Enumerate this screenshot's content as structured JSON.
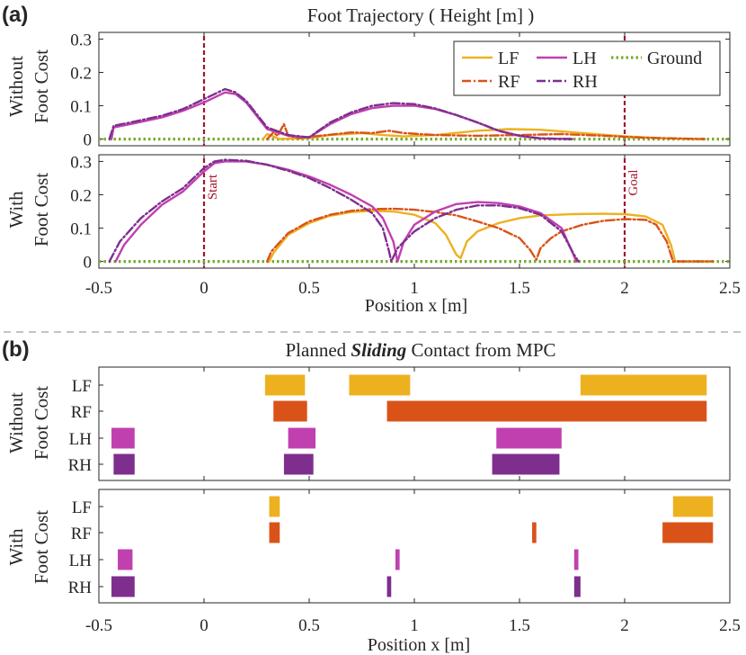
{
  "figure": {
    "panel_a_label": "(a)",
    "panel_b_label": "(b)",
    "title_a": "Foot Trajectory ( Height [m] )",
    "title_b_pre": "Planned ",
    "title_b_em": "Sliding",
    "title_b_post": " Contact from MPC",
    "row_without_1": "Without",
    "row_without_2": "Foot Cost",
    "row_with_1": "With",
    "row_with_2": "Foot Cost",
    "xlabel": "Position x [m]",
    "start_label": "Start",
    "goal_label": "Goal"
  },
  "colors": {
    "LF": "#EDB120",
    "RF": "#D95319",
    "LH": "#C040B0",
    "RH": "#7E2F8E",
    "Ground": "#77AC30",
    "marker": "#A2142F",
    "axis": "#262626",
    "divider": "#888888"
  },
  "chart_data": [
    {
      "id": "traj_without",
      "type": "line",
      "title": "Foot Trajectory ( Height [m] )",
      "ylabel": "Without Foot Cost",
      "xlim": [
        -0.5,
        2.5
      ],
      "ylim": [
        -0.02,
        0.32
      ],
      "yticks": [
        0,
        0.1,
        0.2,
        0.3
      ],
      "ytick_labels": [
        "0",
        "0.1",
        "0.2",
        "0.3"
      ],
      "legend": [
        "LF",
        "RF",
        "LH",
        "RH",
        "Ground"
      ],
      "markers": [
        0,
        2
      ],
      "series": [
        {
          "name": "LF",
          "style": "solid",
          "points": [
            [
              0.28,
              0
            ],
            [
              0.3,
              0.015
            ],
            [
              0.33,
              0.008
            ],
            [
              0.36,
              0
            ],
            [
              0.5,
              0.003
            ],
            [
              0.6,
              0.012
            ],
            [
              0.75,
              0.018
            ],
            [
              0.85,
              0.012
            ],
            [
              0.95,
              0.008
            ],
            [
              1.1,
              0.012
            ],
            [
              1.3,
              0.025
            ],
            [
              1.45,
              0.03
            ],
            [
              1.6,
              0.028
            ],
            [
              1.8,
              0.018
            ],
            [
              2.0,
              0.008
            ],
            [
              2.2,
              0.002
            ],
            [
              2.38,
              0
            ]
          ]
        },
        {
          "name": "RF",
          "style": "dashdot",
          "points": [
            [
              0.3,
              0
            ],
            [
              0.33,
              0.02
            ],
            [
              0.35,
              0.01
            ],
            [
              0.38,
              0.045
            ],
            [
              0.4,
              0.01
            ],
            [
              0.45,
              0.003
            ],
            [
              0.55,
              0.01
            ],
            [
              0.7,
              0.02
            ],
            [
              0.8,
              0.018
            ],
            [
              0.88,
              0.025
            ],
            [
              0.95,
              0.018
            ],
            [
              1.1,
              0.012
            ],
            [
              1.3,
              0.01
            ],
            [
              1.5,
              0.012
            ],
            [
              1.7,
              0.015
            ],
            [
              1.9,
              0.01
            ],
            [
              2.1,
              0.004
            ],
            [
              2.38,
              0
            ]
          ]
        },
        {
          "name": "LH",
          "style": "solid",
          "points": [
            [
              -0.44,
              0
            ],
            [
              -0.43,
              0.035
            ],
            [
              -0.35,
              0.045
            ],
            [
              -0.2,
              0.065
            ],
            [
              -0.1,
              0.085
            ],
            [
              0,
              0.11
            ],
            [
              0.05,
              0.125
            ],
            [
              0.1,
              0.14
            ],
            [
              0.15,
              0.135
            ],
            [
              0.2,
              0.11
            ],
            [
              0.25,
              0.07
            ],
            [
              0.3,
              0.03
            ],
            [
              0.4,
              0.01
            ],
            [
              0.5,
              0.005
            ],
            [
              0.6,
              0.045
            ],
            [
              0.7,
              0.075
            ],
            [
              0.8,
              0.093
            ],
            [
              0.9,
              0.1
            ],
            [
              1.0,
              0.1
            ],
            [
              1.1,
              0.09
            ],
            [
              1.2,
              0.072
            ],
            [
              1.3,
              0.05
            ],
            [
              1.4,
              0.025
            ],
            [
              1.5,
              0.01
            ],
            [
              1.6,
              0.002
            ],
            [
              1.75,
              0
            ]
          ]
        },
        {
          "name": "RH",
          "style": "dashdot",
          "points": [
            [
              -0.45,
              0
            ],
            [
              -0.43,
              0.04
            ],
            [
              -0.35,
              0.05
            ],
            [
              -0.2,
              0.07
            ],
            [
              -0.1,
              0.09
            ],
            [
              0,
              0.12
            ],
            [
              0.05,
              0.135
            ],
            [
              0.1,
              0.15
            ],
            [
              0.15,
              0.14
            ],
            [
              0.2,
              0.115
            ],
            [
              0.25,
              0.075
            ],
            [
              0.3,
              0.035
            ],
            [
              0.4,
              0.012
            ],
            [
              0.5,
              0.005
            ],
            [
              0.6,
              0.05
            ],
            [
              0.7,
              0.08
            ],
            [
              0.8,
              0.1
            ],
            [
              0.9,
              0.108
            ],
            [
              1.0,
              0.105
            ],
            [
              1.1,
              0.092
            ],
            [
              1.2,
              0.072
            ],
            [
              1.3,
              0.05
            ],
            [
              1.4,
              0.025
            ],
            [
              1.5,
              0.01
            ],
            [
              1.6,
              0.002
            ],
            [
              1.75,
              0
            ]
          ]
        },
        {
          "name": "Ground",
          "style": "dotted",
          "points": [
            [
              -0.5,
              0
            ],
            [
              2.5,
              0
            ]
          ]
        }
      ]
    },
    {
      "id": "traj_with",
      "type": "line",
      "ylabel": "With Foot Cost",
      "xlabel": "Position x [m]",
      "xlim": [
        -0.5,
        2.5
      ],
      "ylim": [
        -0.02,
        0.32
      ],
      "xticks": [
        -0.5,
        0,
        0.5,
        1,
        1.5,
        2,
        2.5
      ],
      "xtick_labels": [
        "-0.5",
        "0",
        "0.5",
        "1",
        "1.5",
        "2",
        "2.5"
      ],
      "yticks": [
        0,
        0.1,
        0.2,
        0.3
      ],
      "ytick_labels": [
        "0",
        "0.1",
        "0.2",
        "0.3"
      ],
      "markers": [
        0,
        2
      ],
      "series": [
        {
          "name": "LF",
          "style": "solid",
          "points": [
            [
              0.31,
              0
            ],
            [
              0.33,
              0.025
            ],
            [
              0.4,
              0.08
            ],
            [
              0.5,
              0.115
            ],
            [
              0.6,
              0.137
            ],
            [
              0.7,
              0.148
            ],
            [
              0.8,
              0.152
            ],
            [
              0.9,
              0.15
            ],
            [
              1.0,
              0.14
            ],
            [
              1.1,
              0.115
            ],
            [
              1.15,
              0.08
            ],
            [
              1.2,
              0.02
            ],
            [
              1.22,
              0.01
            ],
            [
              1.25,
              0.06
            ],
            [
              1.3,
              0.09
            ],
            [
              1.4,
              0.115
            ],
            [
              1.5,
              0.13
            ],
            [
              1.6,
              0.138
            ],
            [
              1.75,
              0.142
            ],
            [
              1.9,
              0.143
            ],
            [
              2.0,
              0.142
            ],
            [
              2.1,
              0.135
            ],
            [
              2.18,
              0.11
            ],
            [
              2.22,
              0.05
            ],
            [
              2.24,
              0
            ],
            [
              2.42,
              0
            ]
          ]
        },
        {
          "name": "RF",
          "style": "dashdot",
          "points": [
            [
              0.3,
              0
            ],
            [
              0.32,
              0.03
            ],
            [
              0.4,
              0.085
            ],
            [
              0.5,
              0.12
            ],
            [
              0.6,
              0.14
            ],
            [
              0.7,
              0.152
            ],
            [
              0.8,
              0.157
            ],
            [
              0.9,
              0.158
            ],
            [
              1.0,
              0.155
            ],
            [
              1.1,
              0.148
            ],
            [
              1.2,
              0.138
            ],
            [
              1.3,
              0.12
            ],
            [
              1.4,
              0.1
            ],
            [
              1.5,
              0.07
            ],
            [
              1.55,
              0.035
            ],
            [
              1.58,
              0.005
            ],
            [
              1.6,
              0.04
            ],
            [
              1.65,
              0.07
            ],
            [
              1.7,
              0.09
            ],
            [
              1.8,
              0.11
            ],
            [
              1.9,
              0.122
            ],
            [
              2.0,
              0.127
            ],
            [
              2.1,
              0.125
            ],
            [
              2.15,
              0.11
            ],
            [
              2.2,
              0.06
            ],
            [
              2.23,
              0
            ],
            [
              2.42,
              0
            ]
          ]
        },
        {
          "name": "LH",
          "style": "solid",
          "points": [
            [
              -0.42,
              0
            ],
            [
              -0.38,
              0.05
            ],
            [
              -0.3,
              0.11
            ],
            [
              -0.2,
              0.17
            ],
            [
              -0.1,
              0.21
            ],
            [
              0,
              0.27
            ],
            [
              0.05,
              0.295
            ],
            [
              0.1,
              0.3
            ],
            [
              0.2,
              0.3
            ],
            [
              0.3,
              0.29
            ],
            [
              0.4,
              0.275
            ],
            [
              0.5,
              0.255
            ],
            [
              0.6,
              0.23
            ],
            [
              0.7,
              0.2
            ],
            [
              0.8,
              0.165
            ],
            [
              0.85,
              0.13
            ],
            [
              0.9,
              0.06
            ],
            [
              0.92,
              0
            ],
            [
              0.95,
              0.06
            ],
            [
              1.0,
              0.11
            ],
            [
              1.1,
              0.15
            ],
            [
              1.2,
              0.172
            ],
            [
              1.3,
              0.178
            ],
            [
              1.4,
              0.175
            ],
            [
              1.5,
              0.165
            ],
            [
              1.6,
              0.145
            ],
            [
              1.7,
              0.1
            ],
            [
              1.75,
              0.03
            ],
            [
              1.77,
              0
            ]
          ]
        },
        {
          "name": "RH",
          "style": "dashdot",
          "points": [
            [
              -0.45,
              0
            ],
            [
              -0.4,
              0.06
            ],
            [
              -0.3,
              0.13
            ],
            [
              -0.2,
              0.18
            ],
            [
              -0.1,
              0.22
            ],
            [
              0,
              0.28
            ],
            [
              0.05,
              0.3
            ],
            [
              0.1,
              0.305
            ],
            [
              0.2,
              0.302
            ],
            [
              0.3,
              0.29
            ],
            [
              0.4,
              0.272
            ],
            [
              0.5,
              0.25
            ],
            [
              0.6,
              0.22
            ],
            [
              0.7,
              0.185
            ],
            [
              0.8,
              0.145
            ],
            [
              0.85,
              0.1
            ],
            [
              0.88,
              0.03
            ],
            [
              0.89,
              0
            ],
            [
              0.92,
              0.04
            ],
            [
              1.0,
              0.09
            ],
            [
              1.1,
              0.13
            ],
            [
              1.2,
              0.155
            ],
            [
              1.3,
              0.168
            ],
            [
              1.4,
              0.168
            ],
            [
              1.5,
              0.16
            ],
            [
              1.6,
              0.14
            ],
            [
              1.7,
              0.09
            ],
            [
              1.76,
              0.02
            ],
            [
              1.78,
              0
            ]
          ]
        },
        {
          "name": "Ground",
          "style": "dotted",
          "points": [
            [
              -0.5,
              0
            ],
            [
              2.5,
              0
            ]
          ]
        }
      ]
    },
    {
      "id": "contact_without",
      "type": "bar",
      "title": "Planned Sliding Contact from MPC",
      "ylabel": "Without Foot Cost",
      "xlim": [
        -0.5,
        2.5
      ],
      "categories": [
        "LF",
        "RF",
        "LH",
        "RH"
      ],
      "intervals": {
        "LF": [
          [
            0.29,
            0.48
          ],
          [
            0.69,
            0.98
          ],
          [
            1.79,
            2.39
          ]
        ],
        "RF": [
          [
            0.33,
            0.49
          ],
          [
            0.87,
            2.39
          ]
        ],
        "LH": [
          [
            -0.44,
            -0.33
          ],
          [
            0.4,
            0.53
          ],
          [
            1.39,
            1.7
          ]
        ],
        "RH": [
          [
            -0.43,
            -0.33
          ],
          [
            0.38,
            0.52
          ],
          [
            1.37,
            1.69
          ]
        ]
      }
    },
    {
      "id": "contact_with",
      "type": "bar",
      "ylabel": "With Foot Cost",
      "xlabel": "Position x [m]",
      "xlim": [
        -0.5,
        2.5
      ],
      "xticks": [
        -0.5,
        0,
        0.5,
        1,
        1.5,
        2,
        2.5
      ],
      "xtick_labels": [
        "-0.5",
        "0",
        "0.5",
        "1",
        "1.5",
        "2",
        "2.5"
      ],
      "categories": [
        "LF",
        "RF",
        "LH",
        "RH"
      ],
      "intervals": {
        "LF": [
          [
            0.31,
            0.36
          ],
          [
            2.23,
            2.42
          ]
        ],
        "RF": [
          [
            0.31,
            0.36
          ],
          [
            1.56,
            1.58
          ],
          [
            2.18,
            2.42
          ]
        ],
        "LH": [
          [
            -0.41,
            -0.34
          ],
          [
            0.91,
            0.93
          ],
          [
            1.76,
            1.78
          ]
        ],
        "RH": [
          [
            -0.44,
            -0.33
          ],
          [
            0.87,
            0.89
          ],
          [
            1.76,
            1.79
          ]
        ]
      }
    }
  ]
}
